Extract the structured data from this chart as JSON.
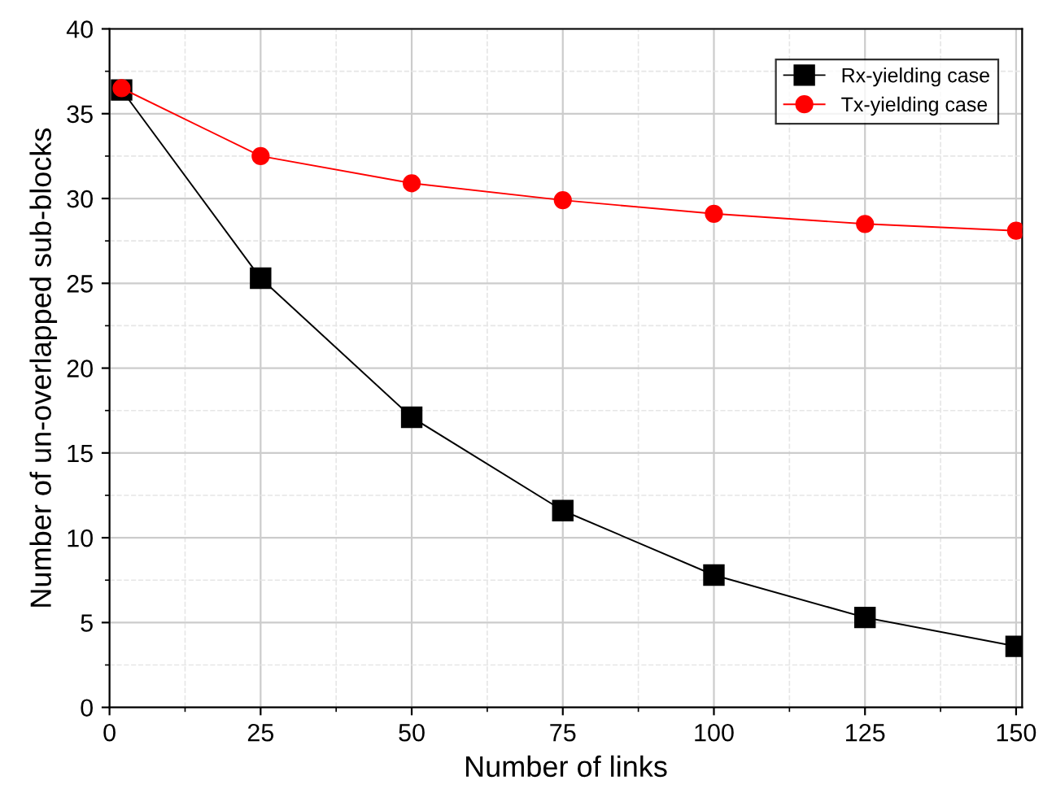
{
  "chart_data": {
    "type": "line",
    "xlabel": "Number of links",
    "ylabel": "Number of un-overlapped sub-blocks",
    "x": [
      2,
      25,
      50,
      75,
      100,
      125,
      150
    ],
    "series": [
      {
        "name": "Rx-yielding case",
        "color": "#000000",
        "marker": "square",
        "values": [
          36.4,
          25.3,
          17.1,
          11.6,
          7.8,
          5.3,
          3.6
        ]
      },
      {
        "name": "Tx-yielding case",
        "color": "#ff0000",
        "marker": "circle",
        "values": [
          36.5,
          32.5,
          30.9,
          29.9,
          29.1,
          28.5,
          28.1
        ]
      }
    ],
    "xlim": [
      0,
      151
    ],
    "ylim": [
      0,
      40
    ],
    "xticks": [
      0,
      25,
      50,
      75,
      100,
      125,
      150
    ],
    "yticks": [
      0,
      5,
      10,
      15,
      20,
      25,
      30,
      35,
      40
    ],
    "grid": true,
    "legend": "top right",
    "line_style": "solid"
  }
}
